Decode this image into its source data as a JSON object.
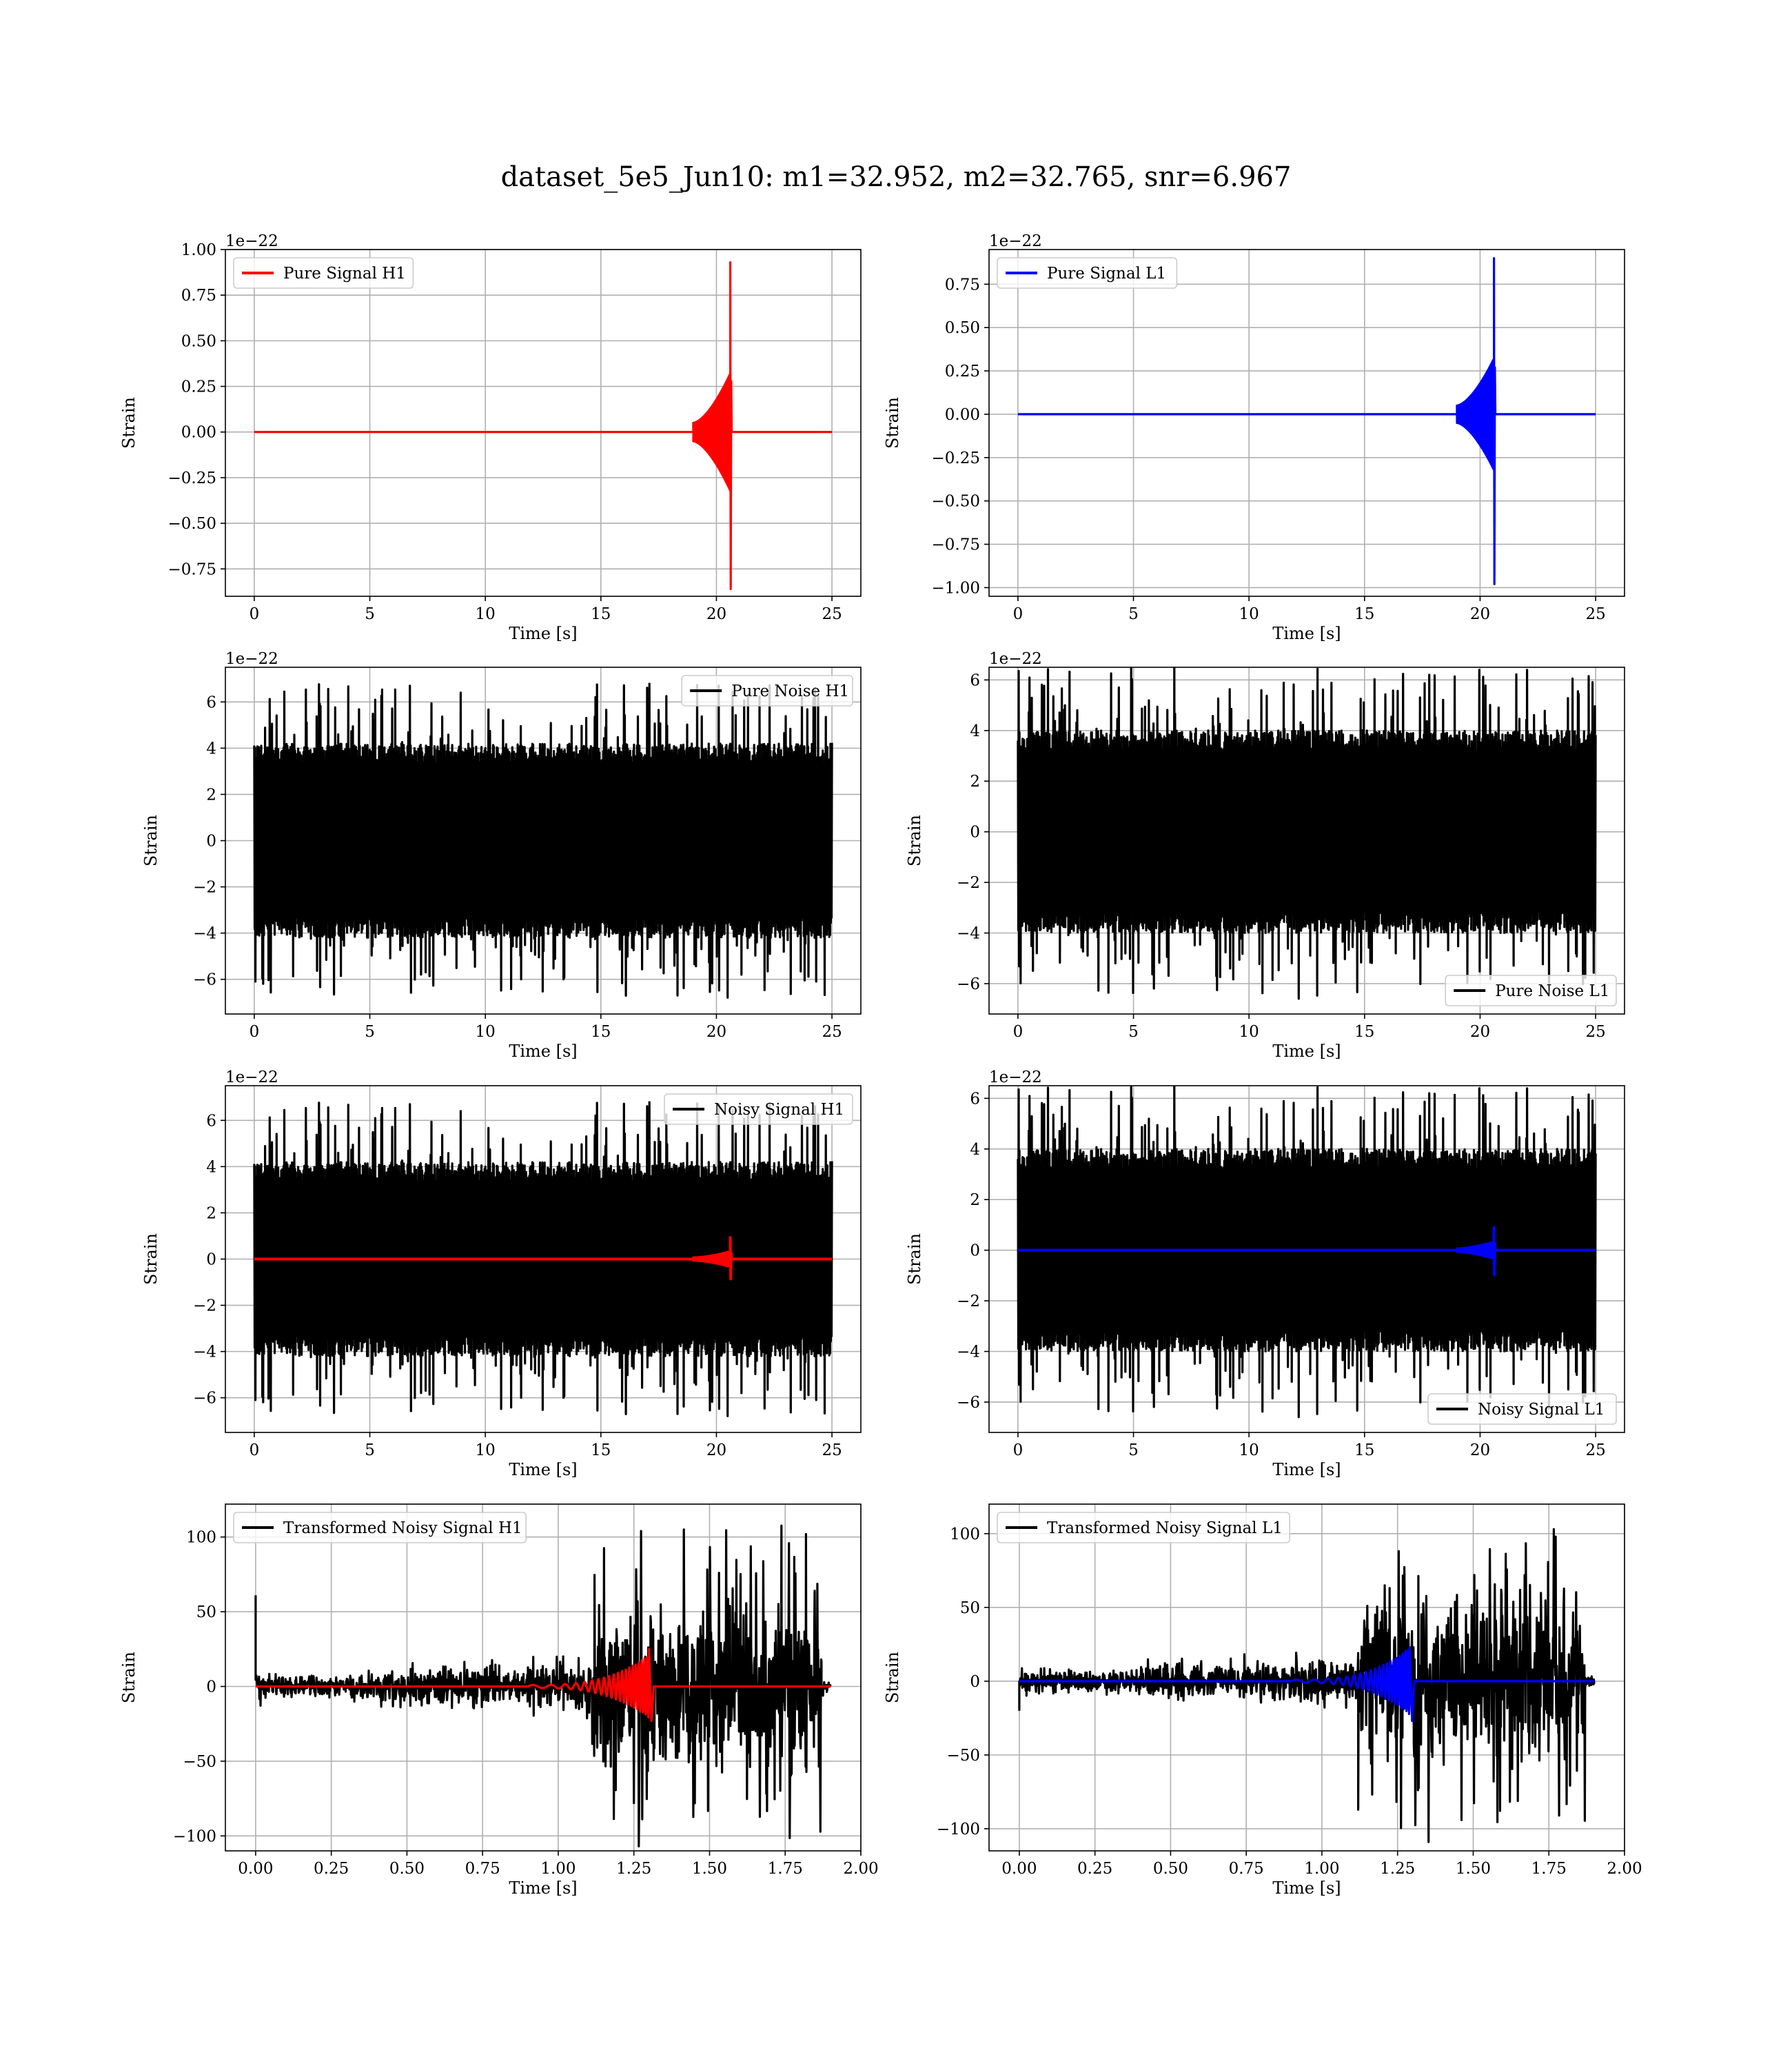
{
  "figure": {
    "title": "dataset_5e5_Jun10: m1=32.952, m2=32.765, snr=6.967"
  },
  "colors": {
    "h1_signal": "#ff0000",
    "l1_signal": "#0000ff",
    "noise": "#000000",
    "grid": "#b0b0b0"
  },
  "chart_data": [
    {
      "id": "pure-signal-h1",
      "type": "line",
      "xlabel": "Time [s]",
      "ylabel": "Strain",
      "offset_label": "1e−22",
      "xlim": [
        -1.25,
        26.25
      ],
      "ylim": [
        -0.9,
        1.0
      ],
      "xticks": [
        0,
        5,
        10,
        15,
        20,
        25
      ],
      "xtick_labels": [
        "0",
        "5",
        "10",
        "15",
        "20",
        "25"
      ],
      "yticks": [
        -0.75,
        -0.5,
        -0.25,
        0.0,
        0.25,
        0.5,
        0.75,
        1.0
      ],
      "ytick_labels": [
        "−0.75",
        "−0.50",
        "−0.25",
        "0.00",
        "0.25",
        "0.50",
        "0.75",
        "1.00"
      ],
      "legend_position": "upper left",
      "grid": true,
      "series": [
        {
          "name": "Pure Signal H1",
          "color": "#ff0000",
          "kind": "chirp",
          "x_start": 0,
          "x_end": 25,
          "merger_x": 20.6,
          "chirp_start_x": 19.0,
          "peak_pos": 0.93,
          "peak_neg": -0.86,
          "envelope_at_chirp_start": 0.05,
          "envelope_before_merger": 0.32,
          "ringdown_after": 0.2
        }
      ]
    },
    {
      "id": "pure-signal-l1",
      "type": "line",
      "xlabel": "Time [s]",
      "ylabel": "Strain",
      "offset_label": "1e−22",
      "xlim": [
        -1.25,
        26.25
      ],
      "ylim": [
        -1.05,
        0.95
      ],
      "xticks": [
        0,
        5,
        10,
        15,
        20,
        25
      ],
      "xtick_labels": [
        "0",
        "5",
        "10",
        "15",
        "20",
        "25"
      ],
      "yticks": [
        -1.0,
        -0.75,
        -0.5,
        -0.25,
        0.0,
        0.25,
        0.5,
        0.75
      ],
      "ytick_labels": [
        "−1.00",
        "−0.75",
        "−0.50",
        "−0.25",
        "0.00",
        "0.25",
        "0.50",
        "0.75"
      ],
      "legend_position": "upper left",
      "grid": true,
      "series": [
        {
          "name": "Pure Signal L1",
          "color": "#0000ff",
          "kind": "chirp",
          "x_start": 0,
          "x_end": 25,
          "merger_x": 20.6,
          "chirp_start_x": 19.0,
          "peak_pos": 0.9,
          "peak_neg": -0.98,
          "envelope_at_chirp_start": 0.05,
          "envelope_before_merger": 0.32,
          "ringdown_after": 0.2
        }
      ]
    },
    {
      "id": "pure-noise-h1",
      "type": "line",
      "xlabel": "Time [s]",
      "ylabel": "Strain",
      "offset_label": "1e−22",
      "xlim": [
        -1.25,
        26.25
      ],
      "ylim": [
        -7.5,
        7.5
      ],
      "xticks": [
        0,
        5,
        10,
        15,
        20,
        25
      ],
      "xtick_labels": [
        "0",
        "5",
        "10",
        "15",
        "20",
        "25"
      ],
      "yticks": [
        -6,
        -4,
        -2,
        0,
        2,
        4,
        6
      ],
      "ytick_labels": [
        "−6",
        "−4",
        "−2",
        "0",
        "2",
        "4",
        "6"
      ],
      "legend_position": "upper right",
      "grid": true,
      "series": [
        {
          "name": "Pure Noise H1",
          "color": "#000000",
          "kind": "noise",
          "x_start": 0,
          "x_end": 25,
          "core_amp": 4.2,
          "max_amp": 6.8,
          "seed": 11
        }
      ]
    },
    {
      "id": "pure-noise-l1",
      "type": "line",
      "xlabel": "Time [s]",
      "ylabel": "Strain",
      "offset_label": "1e−22",
      "xlim": [
        -1.25,
        26.25
      ],
      "ylim": [
        -7.2,
        6.5
      ],
      "xticks": [
        0,
        5,
        10,
        15,
        20,
        25
      ],
      "xtick_labels": [
        "0",
        "5",
        "10",
        "15",
        "20",
        "25"
      ],
      "yticks": [
        -6,
        -4,
        -2,
        0,
        2,
        4,
        6
      ],
      "ytick_labels": [
        "−6",
        "−4",
        "−2",
        "0",
        "2",
        "4",
        "6"
      ],
      "legend_position": "lower right",
      "grid": true,
      "series": [
        {
          "name": "Pure Noise L1",
          "color": "#000000",
          "kind": "noise",
          "x_start": 0,
          "x_end": 25,
          "core_amp": 4.0,
          "max_amp": 6.6,
          "seed": 23
        }
      ]
    },
    {
      "id": "noisy-signal-h1",
      "type": "line",
      "xlabel": "Time [s]",
      "ylabel": "Strain",
      "offset_label": "1e−22",
      "xlim": [
        -1.25,
        26.25
      ],
      "ylim": [
        -7.5,
        7.5
      ],
      "xticks": [
        0,
        5,
        10,
        15,
        20,
        25
      ],
      "xtick_labels": [
        "0",
        "5",
        "10",
        "15",
        "20",
        "25"
      ],
      "yticks": [
        -6,
        -4,
        -2,
        0,
        2,
        4,
        6
      ],
      "ytick_labels": [
        "−6",
        "−4",
        "−2",
        "0",
        "2",
        "4",
        "6"
      ],
      "legend_position": "upper right",
      "grid": true,
      "series": [
        {
          "name": "Noisy Signal H1",
          "color": "#000000",
          "kind": "noise",
          "x_start": 0,
          "x_end": 25,
          "core_amp": 4.2,
          "max_amp": 6.8,
          "seed": 11
        },
        {
          "name": "",
          "color": "#ff0000",
          "kind": "chirp",
          "x_start": 0,
          "x_end": 25,
          "merger_x": 20.6,
          "chirp_start_x": 19.0,
          "peak_pos": 0.93,
          "peak_neg": -0.86,
          "envelope_at_chirp_start": 0.05,
          "envelope_before_merger": 0.32,
          "ringdown_after": 0.2
        }
      ]
    },
    {
      "id": "noisy-signal-l1",
      "type": "line",
      "xlabel": "Time [s]",
      "ylabel": "Strain",
      "offset_label": "1e−22",
      "xlim": [
        -1.25,
        26.25
      ],
      "ylim": [
        -7.2,
        6.5
      ],
      "xticks": [
        0,
        5,
        10,
        15,
        20,
        25
      ],
      "xtick_labels": [
        "0",
        "5",
        "10",
        "15",
        "20",
        "25"
      ],
      "yticks": [
        -6,
        -4,
        -2,
        0,
        2,
        4,
        6
      ],
      "ytick_labels": [
        "−6",
        "−4",
        "−2",
        "0",
        "2",
        "4",
        "6"
      ],
      "legend_position": "lower right",
      "grid": true,
      "series": [
        {
          "name": "Noisy Signal L1",
          "color": "#000000",
          "kind": "noise",
          "x_start": 0,
          "x_end": 25,
          "core_amp": 4.0,
          "max_amp": 6.6,
          "seed": 23
        },
        {
          "name": "",
          "color": "#0000ff",
          "kind": "chirp",
          "x_start": 0,
          "x_end": 25,
          "merger_x": 20.6,
          "chirp_start_x": 19.0,
          "peak_pos": 0.9,
          "peak_neg": -0.98,
          "envelope_at_chirp_start": 0.05,
          "envelope_before_merger": 0.32,
          "ringdown_after": 0.2
        }
      ]
    },
    {
      "id": "transformed-noisy-signal-h1",
      "type": "line",
      "xlabel": "Time [s]",
      "ylabel": "Strain",
      "offset_label": "",
      "xlim": [
        -0.1,
        2.0
      ],
      "ylim": [
        -110,
        122
      ],
      "xticks": [
        0.0,
        0.25,
        0.5,
        0.75,
        1.0,
        1.25,
        1.5,
        1.75,
        2.0
      ],
      "xtick_labels": [
        "0.00",
        "0.25",
        "0.50",
        "0.75",
        "1.00",
        "1.25",
        "1.50",
        "1.75",
        "2.00"
      ],
      "yticks": [
        -100,
        -50,
        0,
        50,
        100
      ],
      "ytick_labels": [
        "−100",
        "−50",
        "0",
        "50",
        "100"
      ],
      "legend_position": "upper left",
      "grid": true,
      "series": [
        {
          "name": "Transformed Noisy Signal H1",
          "color": "#000000",
          "kind": "transformed_noise",
          "x_start": 0,
          "x_end": 1.9,
          "spike_x": 0.0,
          "spike_y": 61,
          "segments": [
            [
              0.0,
              0.4,
              7
            ],
            [
              0.4,
              0.9,
              11
            ],
            [
              0.9,
              1.11,
              16
            ],
            [
              1.11,
              1.87,
              52
            ],
            [
              1.87,
              1.9,
              4
            ]
          ],
          "seed": 5
        },
        {
          "name": "",
          "color": "#ff0000",
          "kind": "transformed_chirp",
          "x_start": 0,
          "x_end": 1.9,
          "merger_x": 1.3,
          "chirp_start_x": 0.9,
          "peak_pos": 25,
          "peak_neg": -23
        }
      ]
    },
    {
      "id": "transformed-noisy-signal-l1",
      "type": "line",
      "xlabel": "Time [s]",
      "ylabel": "Strain",
      "offset_label": "",
      "xlim": [
        -0.1,
        2.0
      ],
      "ylim": [
        -115,
        120
      ],
      "xticks": [
        0.0,
        0.25,
        0.5,
        0.75,
        1.0,
        1.25,
        1.5,
        1.75,
        2.0
      ],
      "xtick_labels": [
        "0.00",
        "0.25",
        "0.50",
        "0.75",
        "1.00",
        "1.25",
        "1.50",
        "1.75",
        "2.00"
      ],
      "yticks": [
        -100,
        -50,
        0,
        50,
        100
      ],
      "ytick_labels": [
        "−100",
        "−50",
        "0",
        "50",
        "100"
      ],
      "legend_position": "upper left",
      "grid": true,
      "series": [
        {
          "name": "Transformed Noisy Signal L1",
          "color": "#000000",
          "kind": "transformed_noise",
          "x_start": 0,
          "x_end": 1.9,
          "spike_x": 0.0,
          "spike_y": -20,
          "segments": [
            [
              0.0,
              0.4,
              7
            ],
            [
              0.4,
              0.9,
              11
            ],
            [
              0.9,
              1.12,
              16
            ],
            [
              1.12,
              1.87,
              52
            ],
            [
              1.87,
              1.9,
              4
            ]
          ],
          "seed": 9
        },
        {
          "name": "",
          "color": "#0000ff",
          "kind": "transformed_chirp",
          "x_start": 0,
          "x_end": 1.9,
          "merger_x": 1.29,
          "chirp_start_x": 0.9,
          "peak_pos": 23,
          "peak_neg": -27
        }
      ]
    }
  ]
}
